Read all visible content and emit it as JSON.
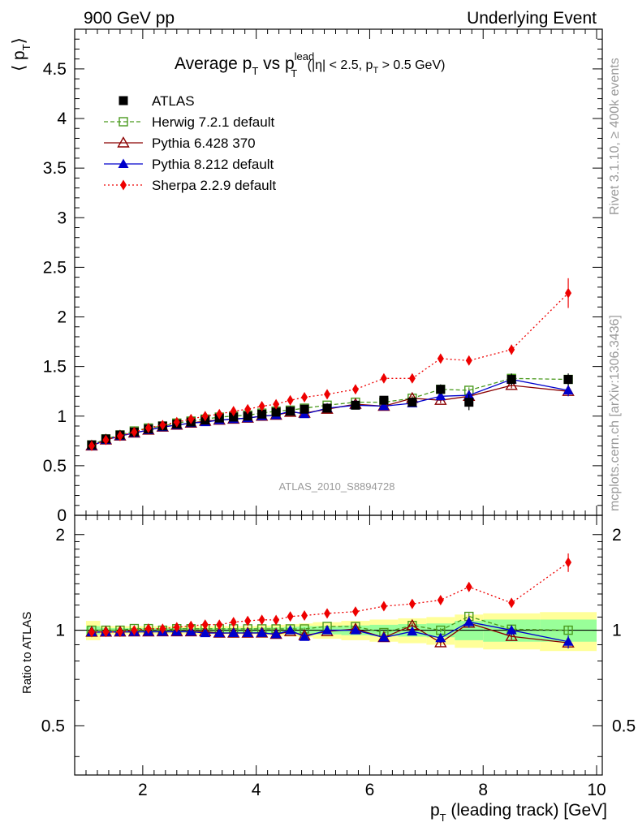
{
  "header": {
    "left": "900 GeV pp",
    "right": "Underlying Event"
  },
  "side_labels": {
    "rivet": "Rivet 3.1.10, ≥ 400k events",
    "mcplots": "mcplots.cern.ch [arXiv:1306.3436]"
  },
  "watermark": "ATLAS_2010_S8894728",
  "chart_data": {
    "type": "line",
    "title": {
      "main": "Average p",
      "sub1": "T",
      "vs": " vs p",
      "sup": "lead",
      "sub2": "T",
      "cuts_a": " (|η| < 2.5, p",
      "cuts_sub": "T",
      "cuts_b": " > 0.5 GeV)"
    },
    "xlabel": {
      "main": "p",
      "sub": "T",
      "rest": " (leading track) [GeV]"
    },
    "ylabel": {
      "open": "⟨ p",
      "sub": "T",
      "close": "⟩"
    },
    "ratio_ylabel": "Ratio to ATLAS",
    "xlim": [
      0.8,
      10.1
    ],
    "ylim": [
      0,
      4.9
    ],
    "ratio_ylim": [
      0.35,
      2.3
    ],
    "x_ticks": [
      2,
      4,
      6,
      8,
      10
    ],
    "y_ticks": [
      0,
      0.5,
      1,
      1.5,
      2,
      2.5,
      3,
      3.5,
      4,
      4.5
    ],
    "ratio_y_ticks": [
      0.5,
      1,
      2
    ],
    "x": [
      1.1,
      1.35,
      1.6,
      1.85,
      2.1,
      2.35,
      2.6,
      2.85,
      3.1,
      3.35,
      3.6,
      3.85,
      4.1,
      4.35,
      4.6,
      4.85,
      5.25,
      5.75,
      6.25,
      6.75,
      7.25,
      7.75,
      8.5,
      9.5
    ],
    "ratio_band": {
      "x_edges": [
        1.0,
        1.25,
        1.5,
        1.75,
        2.0,
        2.25,
        2.5,
        2.75,
        3.0,
        3.25,
        3.5,
        3.75,
        4.0,
        4.25,
        4.5,
        4.75,
        5.0,
        5.5,
        6.0,
        6.5,
        7.0,
        7.5,
        8.0,
        9.0,
        10.0
      ],
      "green_lo": [
        0.97,
        0.985,
        0.985,
        0.985,
        0.985,
        0.985,
        0.985,
        0.985,
        0.985,
        0.985,
        0.985,
        0.985,
        0.98,
        0.98,
        0.975,
        0.97,
        0.97,
        0.965,
        0.96,
        0.955,
        0.95,
        0.93,
        0.92,
        0.92
      ],
      "green_hi": [
        1.03,
        1.015,
        1.015,
        1.015,
        1.015,
        1.015,
        1.015,
        1.015,
        1.015,
        1.015,
        1.015,
        1.015,
        1.02,
        1.02,
        1.025,
        1.03,
        1.03,
        1.035,
        1.04,
        1.045,
        1.05,
        1.07,
        1.08,
        1.08
      ],
      "yellow_lo": [
        0.93,
        0.97,
        0.97,
        0.97,
        0.97,
        0.97,
        0.97,
        0.97,
        0.97,
        0.97,
        0.97,
        0.97,
        0.965,
        0.96,
        0.955,
        0.95,
        0.94,
        0.93,
        0.92,
        0.91,
        0.9,
        0.88,
        0.87,
        0.86
      ],
      "yellow_hi": [
        1.07,
        1.03,
        1.03,
        1.03,
        1.03,
        1.03,
        1.03,
        1.03,
        1.03,
        1.03,
        1.03,
        1.03,
        1.035,
        1.04,
        1.045,
        1.05,
        1.06,
        1.07,
        1.08,
        1.09,
        1.1,
        1.12,
        1.13,
        1.14
      ]
    },
    "series": [
      {
        "name": "ATLAS",
        "color": "#000000",
        "marker": "square-filled",
        "line": "none",
        "values": [
          0.71,
          0.77,
          0.81,
          0.84,
          0.87,
          0.9,
          0.92,
          0.94,
          0.96,
          0.98,
          0.99,
          1.0,
          1.02,
          1.04,
          1.05,
          1.07,
          1.08,
          1.11,
          1.16,
          1.14,
          1.27,
          1.14,
          1.37,
          1.37
        ],
        "errors": [
          0.01,
          0.01,
          0.01,
          0.01,
          0.01,
          0.01,
          0.01,
          0.01,
          0.01,
          0.01,
          0.01,
          0.01,
          0.01,
          0.01,
          0.02,
          0.02,
          0.02,
          0.03,
          0.03,
          0.04,
          0.05,
          0.08,
          0.06,
          0.06
        ]
      },
      {
        "name": "Herwig 7.2.1 default",
        "color": "#4a9a1e",
        "marker": "square-open",
        "line": "dashed",
        "values": [
          0.71,
          0.77,
          0.81,
          0.85,
          0.88,
          0.9,
          0.93,
          0.95,
          0.97,
          0.99,
          1.0,
          1.01,
          1.03,
          1.05,
          1.06,
          1.08,
          1.11,
          1.14,
          1.14,
          1.18,
          1.27,
          1.26,
          1.38,
          1.37
        ],
        "errors": [
          0.005,
          0.005,
          0.005,
          0.005,
          0.005,
          0.005,
          0.005,
          0.005,
          0.005,
          0.005,
          0.005,
          0.005,
          0.01,
          0.01,
          0.01,
          0.01,
          0.01,
          0.01,
          0.02,
          0.02,
          0.02,
          0.03,
          0.03,
          0.04
        ]
      },
      {
        "name": "Pythia 6.428 370",
        "color": "#8b0000",
        "marker": "triangle-open",
        "line": "solid",
        "values": [
          0.7,
          0.76,
          0.8,
          0.83,
          0.86,
          0.89,
          0.91,
          0.93,
          0.95,
          0.96,
          0.97,
          0.98,
          1.0,
          1.01,
          1.04,
          1.03,
          1.07,
          1.12,
          1.1,
          1.18,
          1.16,
          1.2,
          1.31,
          1.25
        ],
        "errors": [
          0.005,
          0.005,
          0.005,
          0.005,
          0.005,
          0.005,
          0.005,
          0.005,
          0.005,
          0.005,
          0.005,
          0.005,
          0.01,
          0.01,
          0.01,
          0.01,
          0.01,
          0.01,
          0.02,
          0.02,
          0.03,
          0.03,
          0.03,
          0.04
        ]
      },
      {
        "name": "Pythia 8.212 default",
        "color": "#0000cc",
        "marker": "triangle-filled",
        "line": "solid",
        "values": [
          0.7,
          0.76,
          0.8,
          0.83,
          0.86,
          0.89,
          0.91,
          0.93,
          0.94,
          0.96,
          0.97,
          0.98,
          1.0,
          1.01,
          1.05,
          1.02,
          1.08,
          1.11,
          1.1,
          1.13,
          1.2,
          1.21,
          1.37,
          1.26
        ],
        "errors": [
          0.005,
          0.005,
          0.005,
          0.005,
          0.005,
          0.005,
          0.005,
          0.005,
          0.005,
          0.005,
          0.005,
          0.005,
          0.01,
          0.01,
          0.01,
          0.01,
          0.02,
          0.02,
          0.03,
          0.03,
          0.04,
          0.05,
          0.05,
          0.06
        ]
      },
      {
        "name": "Sherpa 2.2.9 default",
        "color": "#ee0000",
        "marker": "diamond-filled",
        "line": "dotted",
        "values": [
          0.7,
          0.76,
          0.8,
          0.84,
          0.88,
          0.91,
          0.94,
          0.97,
          1.0,
          1.02,
          1.05,
          1.07,
          1.1,
          1.12,
          1.16,
          1.19,
          1.22,
          1.27,
          1.38,
          1.38,
          1.58,
          1.56,
          1.67,
          2.24
        ],
        "errors": [
          0.005,
          0.005,
          0.005,
          0.005,
          0.005,
          0.005,
          0.005,
          0.005,
          0.01,
          0.01,
          0.01,
          0.01,
          0.01,
          0.01,
          0.01,
          0.02,
          0.02,
          0.02,
          0.03,
          0.03,
          0.04,
          0.04,
          0.05,
          0.15
        ]
      }
    ]
  }
}
